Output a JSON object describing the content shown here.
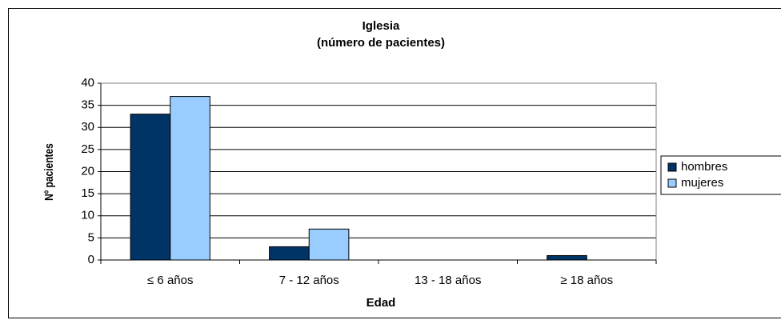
{
  "chart_data": {
    "type": "bar",
    "title": "Iglesia",
    "subtitle": "(número de pacientes)",
    "x_label": "Edad",
    "y_label": "Nº pacientes",
    "categories": [
      "≤ 6 años",
      "7 - 12 años",
      "13 - 18 años",
      "≥ 18 años"
    ],
    "series": [
      {
        "name": "hombres",
        "color": "#003366",
        "values": [
          33,
          3,
          0,
          1
        ]
      },
      {
        "name": "mujeres",
        "color": "#99ccff",
        "values": [
          37,
          7,
          0,
          0
        ]
      }
    ],
    "ylim": [
      0,
      40
    ],
    "yticks": [
      0,
      5,
      10,
      15,
      20,
      25,
      30,
      35,
      40
    ],
    "grid": true,
    "legend": "right"
  }
}
